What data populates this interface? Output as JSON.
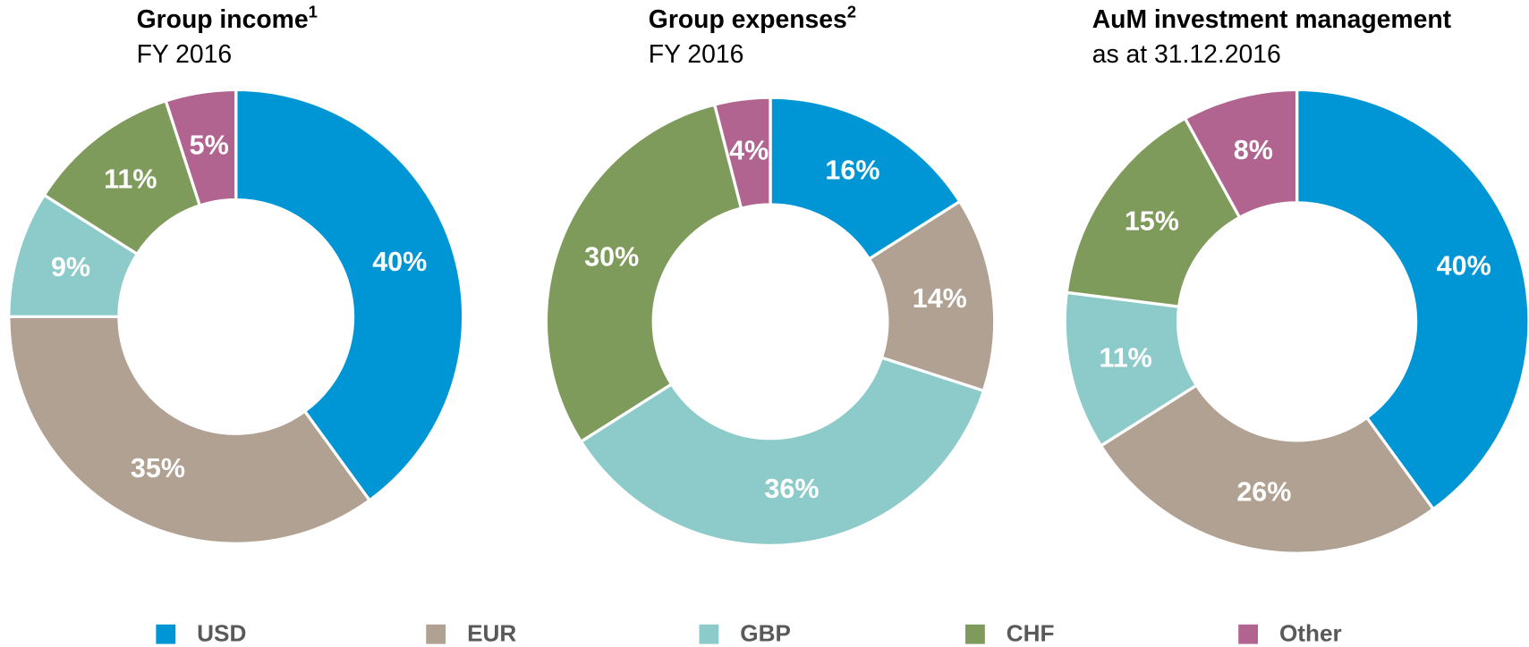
{
  "chart_data": [
    {
      "type": "pie",
      "title": "Group income",
      "title_note": "1",
      "subtitle": "FY 2016",
      "values": [
        40,
        35,
        9,
        11,
        5
      ],
      "value_labels": [
        "40%",
        "35%",
        "9%",
        "11%",
        "5%"
      ]
    },
    {
      "type": "pie",
      "title": "Group expenses",
      "title_note": "2",
      "subtitle": "FY 2016",
      "values": [
        16,
        14,
        36,
        30,
        4
      ],
      "value_labels": [
        "16%",
        "14%",
        "36%",
        "30%",
        "4%"
      ]
    },
    {
      "type": "pie",
      "title": "AuM investment management",
      "subtitle": "as at 31.12.2016",
      "values": [
        40,
        26,
        11,
        15,
        8
      ],
      "value_labels": [
        "40%",
        "26%",
        "11%",
        "15%",
        "8%"
      ]
    }
  ],
  "legend": [
    {
      "name": "USD",
      "color": "#0096d6"
    },
    {
      "name": "EUR",
      "color": "#b1a192"
    },
    {
      "name": "GBP",
      "color": "#8ccbc9"
    },
    {
      "name": "CHF",
      "color": "#7f9b5b"
    },
    {
      "name": "Other",
      "color": "#b26490"
    }
  ]
}
